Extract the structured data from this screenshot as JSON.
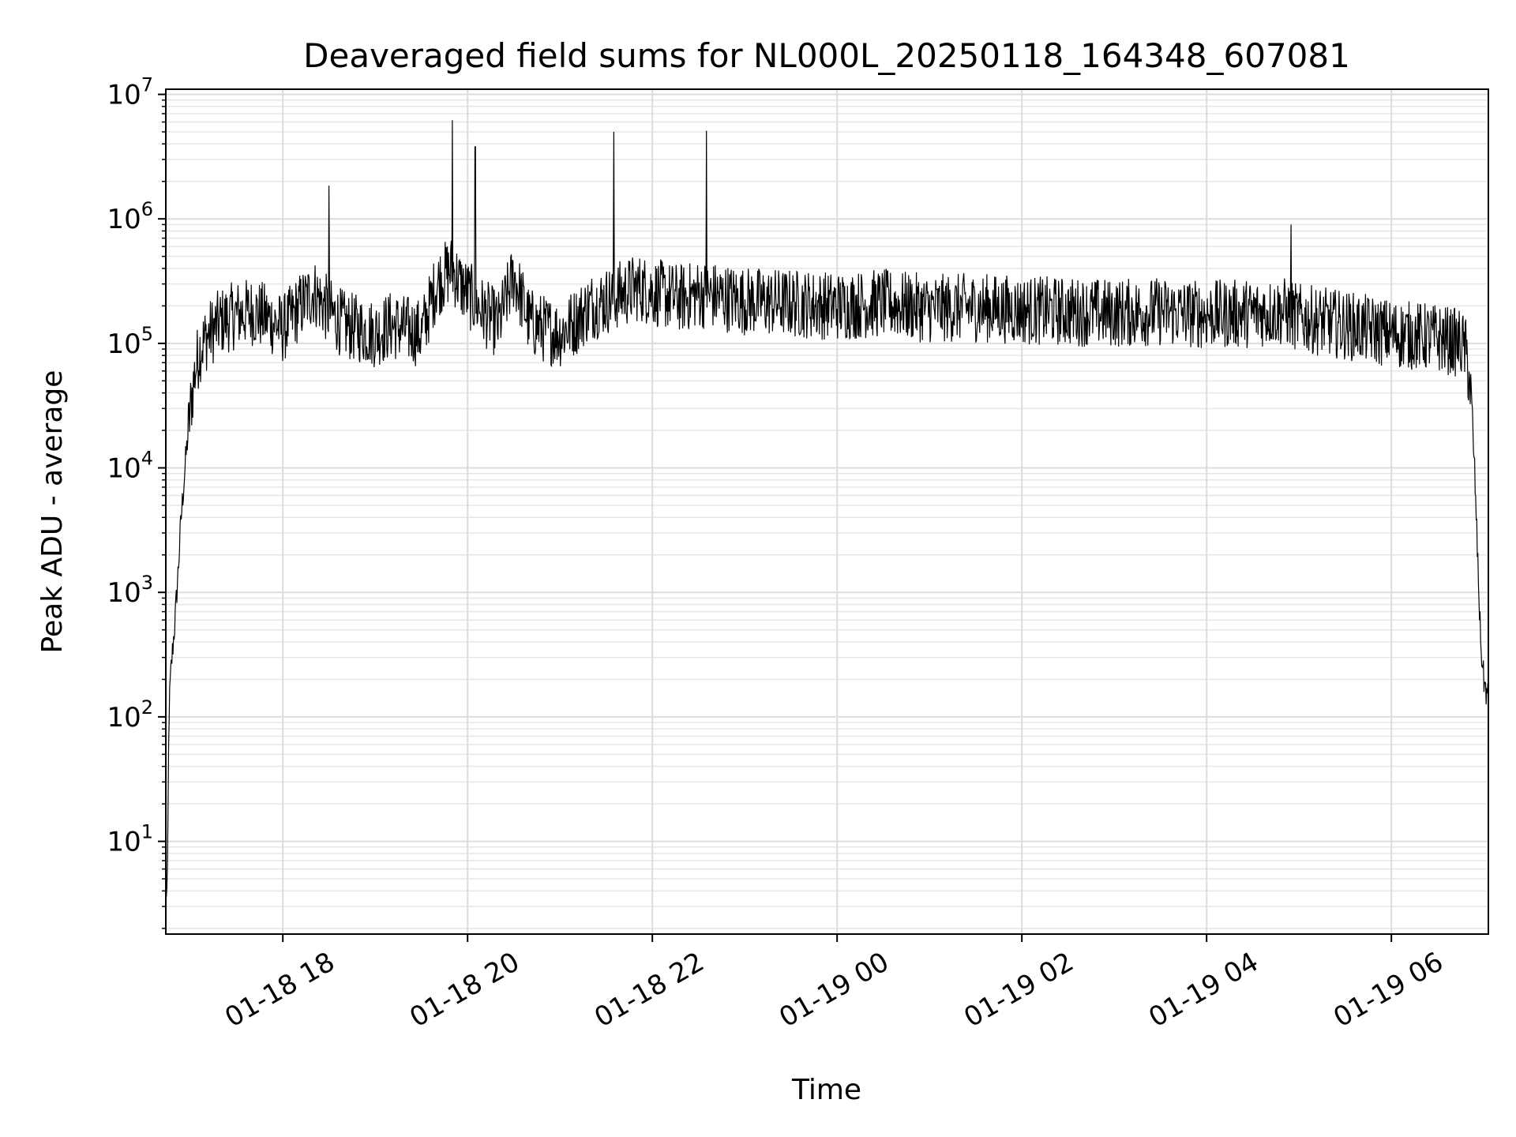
{
  "chart_data": {
    "type": "line",
    "title": "Deaveraged field sums for NL000L_20250118_164348_607081",
    "xlabel": "Time",
    "ylabel": "Peak ADU - average",
    "yscale": "log",
    "ylim": [
      1.8,
      11000000
    ],
    "xlim": [
      "2025-01-18 16:44",
      "2025-01-19 07:03"
    ],
    "grid": true,
    "xticks": [
      {
        "value": "2025-01-18 18:00",
        "label": "01-18 18"
      },
      {
        "value": "2025-01-18 20:00",
        "label": "01-18 20"
      },
      {
        "value": "2025-01-18 22:00",
        "label": "01-18 22"
      },
      {
        "value": "2025-01-19 00:00",
        "label": "01-19 00"
      },
      {
        "value": "2025-01-19 02:00",
        "label": "01-19 02"
      },
      {
        "value": "2025-01-19 04:00",
        "label": "01-19 04"
      },
      {
        "value": "2025-01-19 06:00",
        "label": "01-19 06"
      }
    ],
    "yticks": [
      {
        "value": 10,
        "base": "10",
        "exp": "1"
      },
      {
        "value": 100,
        "base": "10",
        "exp": "2"
      },
      {
        "value": 1000,
        "base": "10",
        "exp": "3"
      },
      {
        "value": 10000,
        "base": "10",
        "exp": "4"
      },
      {
        "value": 100000,
        "base": "10",
        "exp": "5"
      },
      {
        "value": 1000000,
        "base": "10",
        "exp": "6"
      },
      {
        "value": 10000000,
        "base": "10",
        "exp": "7"
      }
    ],
    "series": [
      {
        "color": "#000000",
        "x": [
          "2025-01-18 16:45",
          "2025-01-18 16:46",
          "2025-01-18 16:47",
          "2025-01-18 16:48",
          "2025-01-18 16:50",
          "2025-01-18 16:52",
          "2025-01-18 16:54",
          "2025-01-18 16:57",
          "2025-01-18 17:00",
          "2025-01-18 17:03",
          "2025-01-18 17:06",
          "2025-01-18 17:10",
          "2025-01-18 17:15",
          "2025-01-18 17:20",
          "2025-01-18 17:30",
          "2025-01-18 17:40",
          "2025-01-18 17:50",
          "2025-01-18 18:00",
          "2025-01-18 18:10",
          "2025-01-18 18:20",
          "2025-01-18 18:30",
          "2025-01-18 18:40",
          "2025-01-18 18:50",
          "2025-01-18 19:00",
          "2025-01-18 19:10",
          "2025-01-18 19:20",
          "2025-01-18 19:30",
          "2025-01-18 19:40",
          "2025-01-18 19:45",
          "2025-01-18 19:50",
          "2025-01-18 19:55",
          "2025-01-18 20:00",
          "2025-01-18 20:10",
          "2025-01-18 20:20",
          "2025-01-18 20:30",
          "2025-01-18 20:40",
          "2025-01-18 20:50",
          "2025-01-18 21:00",
          "2025-01-18 21:10",
          "2025-01-18 21:20",
          "2025-01-18 21:30",
          "2025-01-18 21:40",
          "2025-01-18 21:50",
          "2025-01-18 22:00",
          "2025-01-18 22:10",
          "2025-01-18 22:20",
          "2025-01-18 22:30",
          "2025-01-18 22:40",
          "2025-01-18 22:50",
          "2025-01-18 23:00",
          "2025-01-18 23:30",
          "2025-01-19 00:00",
          "2025-01-19 00:30",
          "2025-01-19 01:00",
          "2025-01-19 01:30",
          "2025-01-19 02:00",
          "2025-01-19 02:30",
          "2025-01-19 03:00",
          "2025-01-19 03:30",
          "2025-01-19 04:00",
          "2025-01-19 04:30",
          "2025-01-19 04:50",
          "2025-01-19 05:00",
          "2025-01-19 05:15",
          "2025-01-19 05:30",
          "2025-01-19 06:00",
          "2025-01-19 06:30",
          "2025-01-19 06:45",
          "2025-01-19 06:48",
          "2025-01-19 06:51",
          "2025-01-19 06:54",
          "2025-01-19 06:56",
          "2025-01-19 06:58",
          "2025-01-19 07:00",
          "2025-01-19 07:02"
        ],
        "y": [
          4,
          100,
          200,
          300,
          600,
          1500,
          4000,
          12000,
          30000,
          60000,
          90000,
          110000,
          130000,
          150000,
          170000,
          180000,
          160000,
          130000,
          190000,
          260000,
          180000,
          140000,
          130000,
          120000,
          140000,
          130000,
          120000,
          300000,
          350000,
          400000,
          300000,
          250000,
          180000,
          140000,
          350000,
          150000,
          130000,
          120000,
          150000,
          200000,
          220000,
          250000,
          280000,
          260000,
          240000,
          230000,
          250000,
          240000,
          230000,
          220000,
          210000,
          200000,
          210000,
          190000,
          195000,
          185000,
          180000,
          175000,
          180000,
          170000,
          175000,
          180000,
          160000,
          150000,
          140000,
          120000,
          110000,
          100000,
          90000,
          50000,
          10000,
          2000,
          400,
          200,
          150
        ],
        "spikes": [
          {
            "x": "2025-01-18 18:30",
            "y": 1850000
          },
          {
            "x": "2025-01-18 19:50",
            "y": 6200000
          },
          {
            "x": "2025-01-18 20:05",
            "y": 3800000
          },
          {
            "x": "2025-01-18 21:35",
            "y": 5000000
          },
          {
            "x": "2025-01-18 22:35",
            "y": 5100000
          },
          {
            "x": "2025-01-19 04:55",
            "y": 900000
          }
        ]
      }
    ]
  }
}
